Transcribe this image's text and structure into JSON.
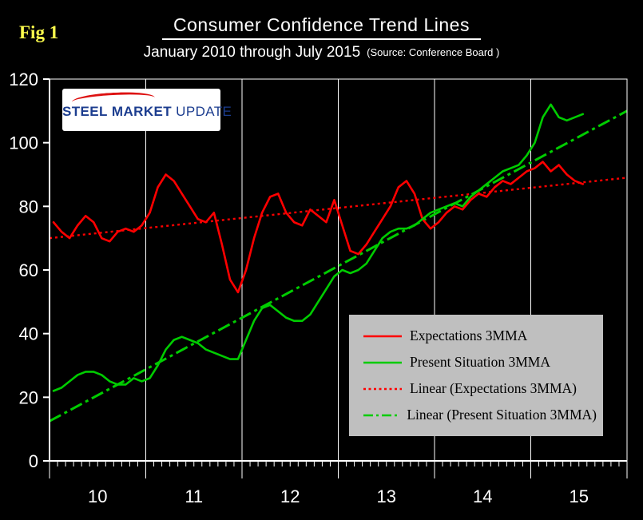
{
  "figure_label": "Fig 1",
  "header": {
    "title": "Consumer Confidence Trend Lines",
    "subtitle": "January 2010 through July 2015",
    "source": "(Source: Conference Board )"
  },
  "logo": {
    "word1": "STEEL",
    "word2": "MARKET",
    "word3": "UPDATE"
  },
  "colors": {
    "background": "#000000",
    "text": "#ffffff",
    "fig_label": "#ffff4d",
    "legend_bg": "#bfbfbf",
    "expectations": "#ff0000",
    "present_situation": "#00cc00",
    "logo_blue": "#1c3d8f",
    "logo_red": "#dd1111"
  },
  "chart_data": {
    "type": "line",
    "title": "Consumer Confidence Trend Lines",
    "x_unit": "month",
    "x_start": "2010-01",
    "x_end": "2015-07",
    "ylim": [
      0,
      120
    ],
    "yticks": [
      0,
      20,
      40,
      60,
      80,
      100,
      120
    ],
    "x_year_labels": [
      "10",
      "11",
      "12",
      "13",
      "14",
      "15"
    ],
    "grid": "vertical-year-lines",
    "legend_position": "middle-right",
    "series": [
      {
        "name": "Expectations 3MMA",
        "color": "#ff0000",
        "style": "solid",
        "values": [
          75,
          72,
          70,
          74,
          77,
          75,
          70,
          69,
          72,
          73,
          72,
          74,
          78,
          86,
          90,
          88,
          84,
          80,
          76,
          75,
          78,
          68,
          57,
          53,
          60,
          70,
          78,
          83,
          84,
          78,
          75,
          74,
          79,
          77,
          75,
          82,
          74,
          66,
          65,
          68,
          72,
          76,
          80,
          86,
          88,
          84,
          76,
          73,
          75,
          78,
          80,
          79,
          82,
          84,
          83,
          86,
          88,
          87,
          89,
          91,
          92,
          94,
          91,
          93,
          90,
          88,
          87
        ]
      },
      {
        "name": "Present Situation 3MMA",
        "color": "#00cc00",
        "style": "solid",
        "values": [
          22,
          23,
          25,
          27,
          28,
          28,
          27,
          25,
          24,
          24,
          26,
          25,
          26,
          30,
          35,
          38,
          39,
          38,
          37,
          35,
          34,
          33,
          32,
          32,
          38,
          44,
          48,
          49,
          47,
          45,
          44,
          44,
          46,
          50,
          54,
          58,
          60,
          59,
          60,
          62,
          66,
          70,
          72,
          73,
          73,
          74,
          76,
          78,
          79,
          80,
          81,
          80,
          83,
          85,
          87,
          89,
          91,
          92,
          93,
          96,
          100,
          108,
          112,
          108,
          107,
          108,
          109
        ]
      },
      {
        "name": "Linear (Expectations 3MMA)",
        "color": "#ff0000",
        "style": "dotted",
        "trend": [
          70,
          89
        ]
      },
      {
        "name": "Linear (Present Situation 3MMA)",
        "color": "#00cc00",
        "style": "dashdot",
        "trend": [
          12.5,
          110
        ]
      }
    ]
  }
}
